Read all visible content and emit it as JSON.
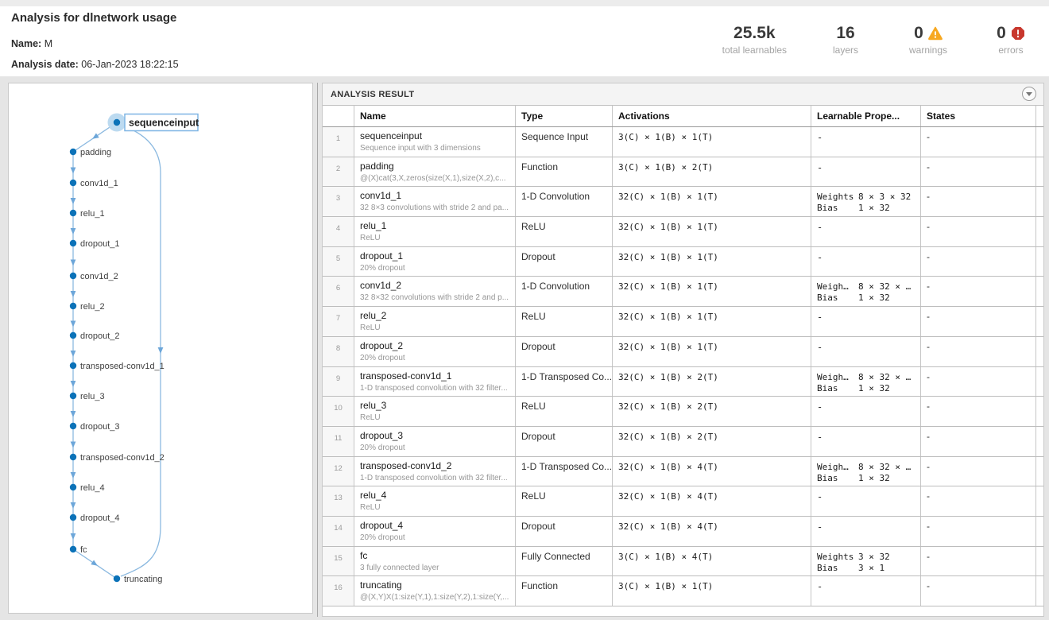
{
  "header": {
    "title": "Analysis for dlnetwork usage",
    "name_label": "Name:",
    "name_value": "M",
    "date_label": "Analysis date:",
    "date_value": "06-Jan-2023 18:22:15",
    "stats": [
      {
        "value": "25.5k",
        "label": "total learnables",
        "icon": null
      },
      {
        "value": "16",
        "label": "layers",
        "icon": null
      },
      {
        "value": "0",
        "label": "warnings",
        "icon": "warning-triangle-icon",
        "icon_color": "#F7A821"
      },
      {
        "value": "0",
        "label": "errors",
        "icon": "error-octagon-icon",
        "icon_color": "#C8372D"
      }
    ]
  },
  "diagram": {
    "selected_node": "sequenceinput",
    "nodes": [
      "sequenceinput",
      "padding",
      "conv1d_1",
      "relu_1",
      "dropout_1",
      "conv1d_2",
      "relu_2",
      "dropout_2",
      "transposed-conv1d_1",
      "relu_3",
      "dropout_3",
      "transposed-conv1d_2",
      "relu_4",
      "dropout_4",
      "fc",
      "truncating"
    ],
    "colors": {
      "node_dot": "#0b72b8",
      "edge": "#8bb9e0",
      "arrow": "#6ca6d9",
      "selection_halo": "#bcdaf0",
      "label_box_border": "#7fb5e4",
      "label_text": "#3f3f3f"
    }
  },
  "panel": {
    "title": "ANALYSIS RESULT"
  },
  "table": {
    "columns": [
      "",
      "Name",
      "Type",
      "Activations",
      "Learnable Prope...",
      "States"
    ],
    "rows": [
      {
        "num": "1",
        "name": "sequenceinput",
        "desc": "Sequence input with 3 dimensions",
        "type": "Sequence Input",
        "activations": "3(C) × 1(B) × 1(T)",
        "learnables": null,
        "states": "-"
      },
      {
        "num": "2",
        "name": "padding",
        "desc": "@(X)cat(3,X,zeros(size(X,1),size(X,2),c...",
        "type": "Function",
        "activations": "3(C) × 1(B) × 2(T)",
        "learnables": null,
        "states": "-"
      },
      {
        "num": "3",
        "name": "conv1d_1",
        "desc": "32 8×3 convolutions with stride 2 and pa...",
        "type": "1-D Convolution",
        "activations": "32(C) × 1(B) × 1(T)",
        "learnables": [
          [
            "Weights",
            "8 × 3 × 32"
          ],
          [
            "Bias",
            "1 × 32"
          ]
        ],
        "states": "-"
      },
      {
        "num": "4",
        "name": "relu_1",
        "desc": "ReLU",
        "type": "ReLU",
        "activations": "32(C) × 1(B) × 1(T)",
        "learnables": null,
        "states": "-"
      },
      {
        "num": "5",
        "name": "dropout_1",
        "desc": "20% dropout",
        "type": "Dropout",
        "activations": "32(C) × 1(B) × 1(T)",
        "learnables": null,
        "states": "-"
      },
      {
        "num": "6",
        "name": "conv1d_2",
        "desc": "32 8×32 convolutions with stride 2 and p...",
        "type": "1-D Convolution",
        "activations": "32(C) × 1(B) × 1(T)",
        "learnables": [
          [
            "Weigh…",
            "8 × 32 × …"
          ],
          [
            "Bias",
            "1 × 32"
          ]
        ],
        "states": "-"
      },
      {
        "num": "7",
        "name": "relu_2",
        "desc": "ReLU",
        "type": "ReLU",
        "activations": "32(C) × 1(B) × 1(T)",
        "learnables": null,
        "states": "-"
      },
      {
        "num": "8",
        "name": "dropout_2",
        "desc": "20% dropout",
        "type": "Dropout",
        "activations": "32(C) × 1(B) × 1(T)",
        "learnables": null,
        "states": "-"
      },
      {
        "num": "9",
        "name": "transposed-conv1d_1",
        "desc": "1-D transposed convolution with 32 filter...",
        "type": "1-D Transposed Co...",
        "activations": "32(C) × 1(B) × 2(T)",
        "learnables": [
          [
            "Weigh…",
            "8 × 32 × …"
          ],
          [
            "Bias",
            "1 × 32"
          ]
        ],
        "states": "-"
      },
      {
        "num": "10",
        "name": "relu_3",
        "desc": "ReLU",
        "type": "ReLU",
        "activations": "32(C) × 1(B) × 2(T)",
        "learnables": null,
        "states": "-"
      },
      {
        "num": "11",
        "name": "dropout_3",
        "desc": "20% dropout",
        "type": "Dropout",
        "activations": "32(C) × 1(B) × 2(T)",
        "learnables": null,
        "states": "-"
      },
      {
        "num": "12",
        "name": "transposed-conv1d_2",
        "desc": "1-D transposed convolution with 32 filter...",
        "type": "1-D Transposed Co...",
        "activations": "32(C) × 1(B) × 4(T)",
        "learnables": [
          [
            "Weigh…",
            "8 × 32 × …"
          ],
          [
            "Bias",
            "1 × 32"
          ]
        ],
        "states": "-"
      },
      {
        "num": "13",
        "name": "relu_4",
        "desc": "ReLU",
        "type": "ReLU",
        "activations": "32(C) × 1(B) × 4(T)",
        "learnables": null,
        "states": "-"
      },
      {
        "num": "14",
        "name": "dropout_4",
        "desc": "20% dropout",
        "type": "Dropout",
        "activations": "32(C) × 1(B) × 4(T)",
        "learnables": null,
        "states": "-"
      },
      {
        "num": "15",
        "name": "fc",
        "desc": "3 fully connected layer",
        "type": "Fully Connected",
        "activations": "3(C) × 1(B) × 4(T)",
        "learnables": [
          [
            "Weights",
            "3 × 32"
          ],
          [
            "Bias",
            "3 × 1"
          ]
        ],
        "states": "-"
      },
      {
        "num": "16",
        "name": "truncating",
        "desc": "@(X,Y)X(1:size(Y,1),1:size(Y,2),1:size(Y,...",
        "type": "Function",
        "activations": "3(C) × 1(B) × 1(T)",
        "learnables": null,
        "states": "-"
      }
    ]
  }
}
